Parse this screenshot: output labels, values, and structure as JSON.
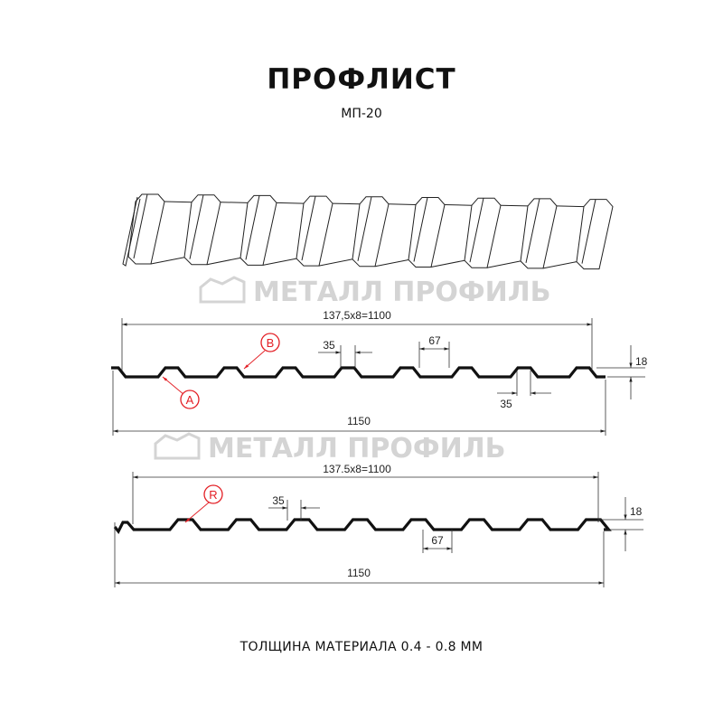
{
  "header": {
    "title": "ПРОФЛИСТ",
    "subtitle": "МП-20"
  },
  "watermark": {
    "text": "МЕТАЛЛ ПРОФИЛЬ"
  },
  "profile_a": {
    "pitch_label": "137,5x8=1100",
    "crest_label": "35",
    "crest_pitch_label": "67",
    "trough_label": "35",
    "height_label": "18",
    "width_label": "1150",
    "callouts": [
      "B",
      "A"
    ]
  },
  "profile_b": {
    "pitch_label": "137.5x8=1100",
    "crest_label": "35",
    "trough_label": "67",
    "height_label": "18",
    "width_label": "1150",
    "callouts": [
      "R"
    ]
  },
  "footer": {
    "text": "ТОЛЩИНА МАТЕРИАЛА 0.4 - 0.8 ММ"
  },
  "colors": {
    "profile": "#111111",
    "callout": "#e31e24",
    "watermark": "#d4d4d4"
  }
}
